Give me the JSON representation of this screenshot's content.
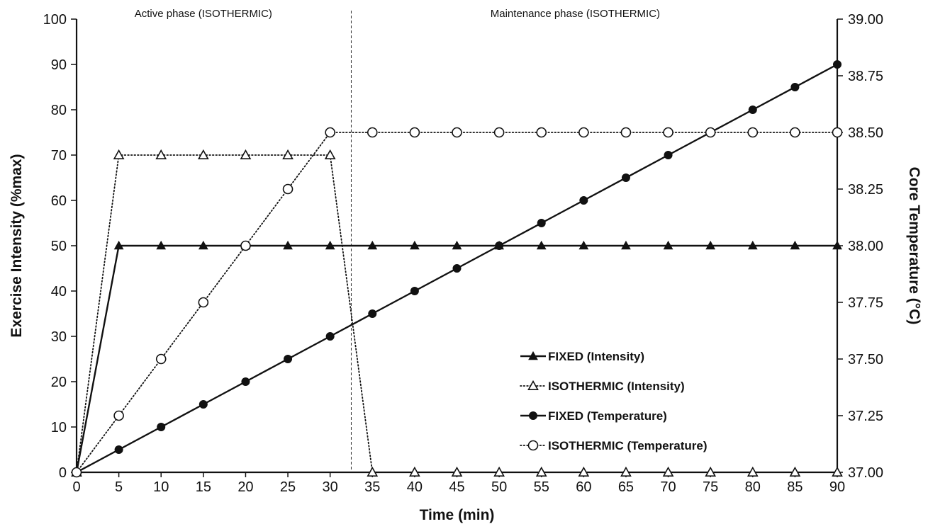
{
  "chart_data": {
    "type": "line",
    "xlabel": "Time (min)",
    "ylabel": "Exercise Intensity (%max)",
    "y2label": "Core Temperature (°C)",
    "xlim": [
      0,
      90
    ],
    "ylim": [
      0,
      100
    ],
    "y2lim": [
      37.0,
      39.0
    ],
    "x_ticks": [
      0,
      5,
      10,
      15,
      20,
      25,
      30,
      35,
      40,
      45,
      50,
      55,
      60,
      65,
      70,
      75,
      80,
      85,
      90
    ],
    "y_ticks": [
      0,
      10,
      20,
      30,
      40,
      50,
      60,
      70,
      80,
      90,
      100
    ],
    "y2_ticks": [
      "37.00",
      "37.25",
      "37.50",
      "37.75",
      "38.00",
      "38.25",
      "38.50",
      "38.75",
      "39.00"
    ],
    "grid": false,
    "legend_position": "bottom-right",
    "annotations": [
      {
        "text": "Active phase (ISOTHERMIC)",
        "x": 15
      },
      {
        "text": "Maintenance phase (ISOTHERMIC)",
        "x": 59
      }
    ],
    "phase_divider_x": 32.5,
    "series": [
      {
        "name": "FIXED (Intensity)",
        "axis": "left",
        "line": "solid",
        "marker": "triangle-filled",
        "x": [
          0,
          5,
          10,
          15,
          20,
          25,
          30,
          35,
          40,
          45,
          50,
          55,
          60,
          65,
          70,
          75,
          80,
          85,
          90
        ],
        "values": [
          0,
          50,
          50,
          50,
          50,
          50,
          50,
          50,
          50,
          50,
          50,
          50,
          50,
          50,
          50,
          50,
          50,
          50,
          50
        ]
      },
      {
        "name": "ISOTHERMIC (Intensity)",
        "axis": "left",
        "line": "dotted",
        "marker": "triangle-open",
        "x": [
          0,
          5,
          10,
          15,
          20,
          25,
          30,
          35,
          40,
          45,
          50,
          55,
          60,
          65,
          70,
          75,
          80,
          85,
          90
        ],
        "values": [
          0,
          70,
          70,
          70,
          70,
          70,
          70,
          0,
          0,
          0,
          0,
          0,
          0,
          0,
          0,
          0,
          0,
          0,
          0
        ]
      },
      {
        "name": "FIXED (Temperature)",
        "axis": "right",
        "line": "solid",
        "marker": "circle-filled",
        "x": [
          0,
          5,
          10,
          15,
          20,
          25,
          30,
          35,
          40,
          45,
          50,
          55,
          60,
          65,
          70,
          75,
          80,
          85,
          90
        ],
        "values": [
          37.0,
          37.1,
          37.2,
          37.3,
          37.4,
          37.5,
          37.6,
          37.7,
          37.8,
          37.9,
          38.0,
          38.1,
          38.2,
          38.3,
          38.4,
          38.5,
          38.6,
          38.7,
          38.8
        ]
      },
      {
        "name": "ISOTHERMIC (Temperature)",
        "axis": "right",
        "line": "dotted",
        "marker": "circle-open",
        "x": [
          0,
          5,
          10,
          15,
          20,
          25,
          30,
          35,
          40,
          45,
          50,
          55,
          60,
          65,
          70,
          75,
          80,
          85,
          90
        ],
        "values": [
          37.0,
          37.25,
          37.5,
          37.75,
          38.0,
          38.25,
          38.5,
          38.5,
          38.5,
          38.5,
          38.5,
          38.5,
          38.5,
          38.5,
          38.5,
          38.5,
          38.5,
          38.5,
          38.5
        ]
      }
    ]
  }
}
